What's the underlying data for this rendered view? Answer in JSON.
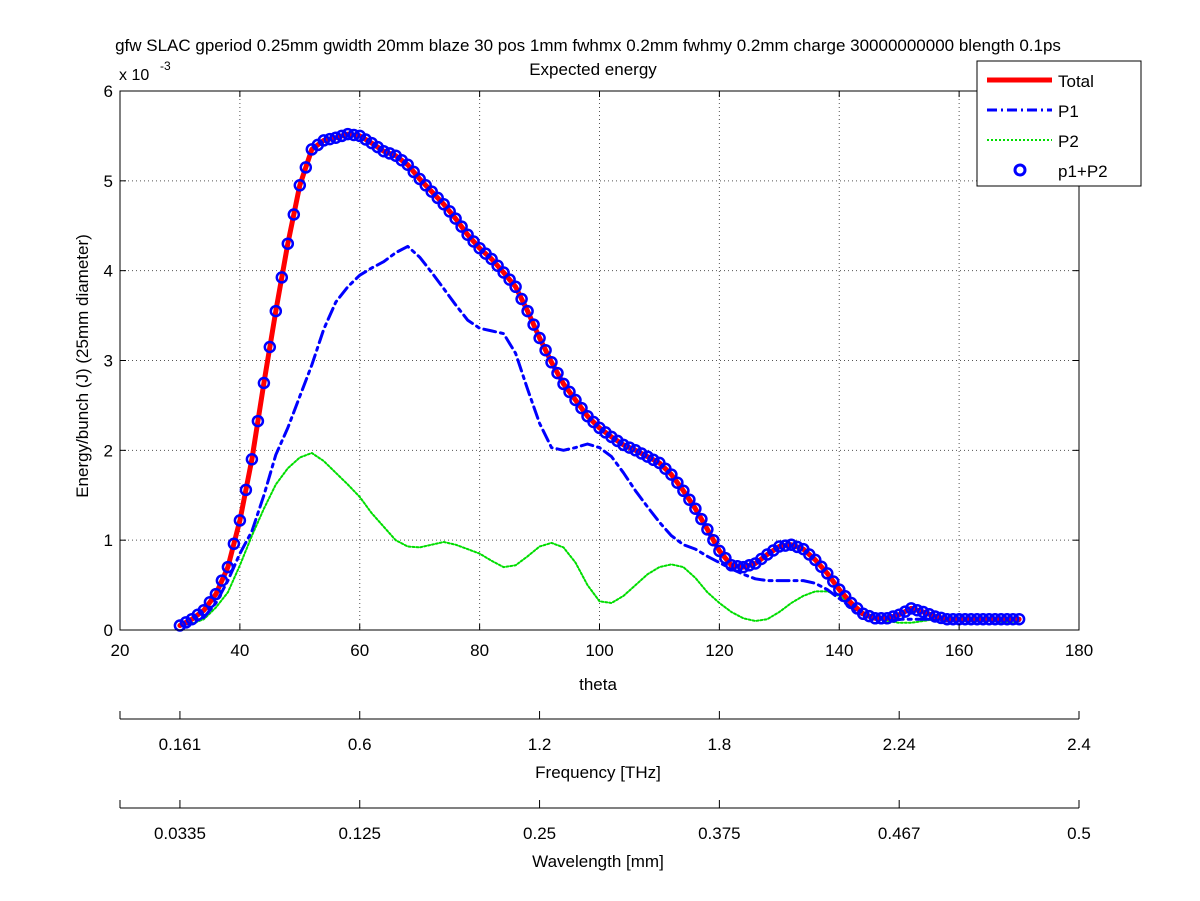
{
  "chart_data": {
    "type": "line",
    "title": "gfw SLAC gperiod 0.25mm gwidth 20mm blaze 30 pos 1mm fwhmx 0.2mm fwhmy 0.2mm charge 30000000000 blength 0.1ps",
    "subtitle": "Expected energy",
    "xlabel": "theta",
    "ylabel": "Energy/bunch (J) (25mm diameter)",
    "y_exponent_label": "x 10",
    "y_exponent_power": "-3",
    "xlim": [
      20,
      180
    ],
    "ylim": [
      0,
      6
    ],
    "y_scale_note": "values in units of 1e-3 J",
    "grid": true,
    "legend_position": "top-right",
    "x_ticks": [
      "20",
      "40",
      "60",
      "80",
      "100",
      "120",
      "140",
      "160",
      "180"
    ],
    "y_ticks": [
      "0",
      "1",
      "2",
      "3",
      "4",
      "5",
      "6"
    ],
    "secondary_axes": [
      {
        "label": "Frequency [THz]",
        "ticks": [
          {
            "theta": 20,
            "text": ""
          },
          {
            "theta": 30,
            "text": "0.161"
          },
          {
            "theta": 60,
            "text": "0.6"
          },
          {
            "theta": 90,
            "text": "1.2"
          },
          {
            "theta": 120,
            "text": "1.8"
          },
          {
            "theta": 150,
            "text": "2.24"
          },
          {
            "theta": 180,
            "text": "2.4"
          }
        ]
      },
      {
        "label": "Wavelength [mm]",
        "ticks": [
          {
            "theta": 20,
            "text": ""
          },
          {
            "theta": 30,
            "text": "0.0335"
          },
          {
            "theta": 60,
            "text": "0.125"
          },
          {
            "theta": 90,
            "text": "0.25"
          },
          {
            "theta": 120,
            "text": "0.375"
          },
          {
            "theta": 150,
            "text": "0.467"
          },
          {
            "theta": 180,
            "text": "0.5"
          }
        ]
      }
    ],
    "series": [
      {
        "name": "Total",
        "style": "solid",
        "color": "#ff0000",
        "x": [
          30,
          32,
          34,
          36,
          38,
          40,
          42,
          44,
          46,
          48,
          50,
          52,
          54,
          56,
          58,
          60,
          62,
          64,
          66,
          68,
          70,
          72,
          74,
          76,
          78,
          80,
          82,
          84,
          86,
          88,
          90,
          92,
          94,
          96,
          98,
          100,
          102,
          104,
          106,
          108,
          110,
          112,
          114,
          116,
          118,
          120,
          122,
          124,
          126,
          128,
          130,
          132,
          134,
          136,
          138,
          140,
          142,
          144,
          146,
          148,
          150,
          152,
          154,
          156,
          158,
          160,
          162,
          164,
          166,
          168,
          170
        ],
        "values": [
          0.05,
          0.12,
          0.22,
          0.4,
          0.7,
          1.22,
          1.9,
          2.75,
          3.55,
          4.3,
          4.95,
          5.35,
          5.45,
          5.48,
          5.52,
          5.5,
          5.42,
          5.33,
          5.28,
          5.18,
          5.02,
          4.88,
          4.74,
          4.58,
          4.4,
          4.25,
          4.13,
          3.98,
          3.82,
          3.55,
          3.25,
          2.98,
          2.74,
          2.56,
          2.38,
          2.25,
          2.15,
          2.06,
          2.0,
          1.93,
          1.86,
          1.73,
          1.55,
          1.35,
          1.12,
          0.88,
          0.72,
          0.7,
          0.74,
          0.84,
          0.93,
          0.95,
          0.9,
          0.78,
          0.63,
          0.45,
          0.3,
          0.18,
          0.13,
          0.13,
          0.17,
          0.24,
          0.2,
          0.15,
          0.12,
          0.12,
          0.12,
          0.12,
          0.12,
          0.12,
          0.12
        ]
      },
      {
        "name": "P1",
        "style": "dashdot",
        "color": "#0000ff",
        "x": [
          30,
          32,
          34,
          36,
          38,
          40,
          42,
          44,
          46,
          48,
          50,
          52,
          54,
          56,
          58,
          60,
          62,
          64,
          66,
          68,
          70,
          72,
          74,
          76,
          78,
          80,
          82,
          84,
          86,
          88,
          90,
          92,
          94,
          96,
          98,
          100,
          102,
          104,
          106,
          108,
          110,
          112,
          114,
          116,
          118,
          120,
          122,
          124,
          126,
          128,
          130,
          132,
          134,
          136,
          138,
          140,
          142,
          144,
          146,
          148,
          150,
          152,
          154,
          156,
          158,
          160,
          162,
          164,
          166,
          168,
          170
        ],
        "values": [
          0.05,
          0.08,
          0.14,
          0.3,
          0.55,
          0.85,
          1.1,
          1.5,
          1.95,
          2.25,
          2.6,
          2.95,
          3.35,
          3.65,
          3.82,
          3.95,
          4.03,
          4.1,
          4.2,
          4.27,
          4.15,
          3.98,
          3.8,
          3.62,
          3.45,
          3.36,
          3.33,
          3.3,
          3.08,
          2.68,
          2.3,
          2.03,
          2.0,
          2.03,
          2.07,
          2.03,
          1.93,
          1.75,
          1.55,
          1.37,
          1.2,
          1.05,
          0.95,
          0.9,
          0.82,
          0.75,
          0.68,
          0.62,
          0.57,
          0.55,
          0.55,
          0.55,
          0.55,
          0.52,
          0.45,
          0.35,
          0.25,
          0.16,
          0.12,
          0.12,
          0.12,
          0.12,
          0.12,
          0.12,
          0.1,
          0.1,
          0.1,
          0.1,
          0.1,
          0.1,
          0.1
        ]
      },
      {
        "name": "P2",
        "style": "dotted",
        "color": "#00ff00",
        "x": [
          30,
          32,
          34,
          36,
          38,
          40,
          42,
          44,
          46,
          48,
          50,
          52,
          54,
          56,
          58,
          60,
          62,
          64,
          66,
          68,
          70,
          72,
          74,
          76,
          78,
          80,
          82,
          84,
          86,
          88,
          90,
          92,
          94,
          96,
          98,
          100,
          102,
          104,
          106,
          108,
          110,
          112,
          114,
          116,
          118,
          120,
          122,
          124,
          126,
          128,
          130,
          132,
          134,
          136,
          138,
          140,
          142,
          144,
          146,
          148,
          150,
          152,
          154,
          156,
          158,
          160,
          162,
          164,
          166,
          168,
          170
        ],
        "values": [
          0.05,
          0.07,
          0.12,
          0.25,
          0.42,
          0.72,
          1.05,
          1.35,
          1.62,
          1.8,
          1.92,
          1.97,
          1.88,
          1.75,
          1.62,
          1.48,
          1.3,
          1.15,
          1.0,
          0.93,
          0.92,
          0.95,
          0.98,
          0.95,
          0.9,
          0.85,
          0.77,
          0.7,
          0.72,
          0.82,
          0.93,
          0.97,
          0.92,
          0.75,
          0.5,
          0.32,
          0.3,
          0.38,
          0.5,
          0.62,
          0.7,
          0.73,
          0.7,
          0.58,
          0.42,
          0.3,
          0.2,
          0.13,
          0.1,
          0.12,
          0.2,
          0.3,
          0.38,
          0.43,
          0.43,
          0.38,
          0.3,
          0.2,
          0.13,
          0.1,
          0.08,
          0.08,
          0.1,
          0.12,
          0.13,
          0.13,
          0.13,
          0.12,
          0.1,
          0.08,
          0.07
        ]
      },
      {
        "name": "p1+P2",
        "style": "circle-markers",
        "color": "#0000ff",
        "from_series": "Total"
      }
    ]
  }
}
